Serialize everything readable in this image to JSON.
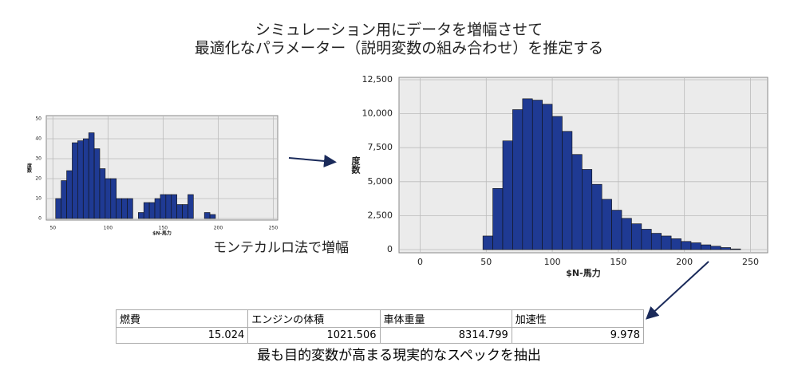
{
  "title": [
    "シミュレーション用にデータを増幅させて",
    "最適化なパラメーター（説明変数の組み合わせ）を推定する"
  ],
  "chart_data": [
    {
      "type": "histogram",
      "xlabel": "$N-馬力",
      "ylabel": "度数",
      "icon_label": "馬力",
      "color": "#1f3a93",
      "grid": true,
      "bins": [
        52.5,
        57.5,
        62.5,
        67.5,
        72.5,
        77.5,
        82.5,
        87.5,
        92.5,
        97.5,
        102.5,
        107.5,
        112.5,
        117.5,
        122.5,
        127.5,
        132.5,
        137.5,
        142.5,
        147.5,
        152.5,
        157.5,
        162.5,
        167.5,
        172.5,
        177.5,
        182.5,
        187.5,
        192.5,
        197.5,
        202.5
      ],
      "counts": [
        10,
        19,
        24,
        38,
        39,
        40,
        43,
        35,
        25,
        20,
        20,
        10,
        10,
        10,
        0,
        3,
        8,
        8,
        10,
        12,
        12,
        12,
        7,
        7,
        12,
        0,
        0,
        3,
        2,
        0
      ],
      "xlim": [
        44,
        254
      ],
      "xticks": [
        50,
        100,
        150,
        200,
        250
      ],
      "ylim": [
        -0.8,
        51.6
      ],
      "yticks": [
        0,
        10,
        20,
        30,
        40,
        50
      ]
    },
    {
      "type": "histogram",
      "xlabel": "$N-馬力",
      "ylabel": "度数",
      "icon_label": "馬力",
      "color": "#1f3a93",
      "grid": true,
      "bins": [
        47.5,
        55,
        62.5,
        70,
        77.5,
        85,
        92.5,
        100,
        107.5,
        115,
        122.5,
        130,
        137.5,
        145,
        152.5,
        160,
        167.5,
        175,
        182.5,
        190,
        197.5,
        205,
        212.5,
        220,
        227.5,
        235,
        242.5
      ],
      "counts": [
        1000,
        4500,
        8000,
        10300,
        11100,
        11000,
        10700,
        9800,
        8700,
        7000,
        5900,
        4800,
        3700,
        2900,
        2300,
        1900,
        1500,
        1200,
        1000,
        800,
        600,
        500,
        350,
        250,
        150,
        50
      ],
      "xlim": [
        -16,
        263
      ],
      "xticks": [
        0,
        50,
        100,
        150,
        200,
        250
      ],
      "ylim": [
        -235,
        12676
      ],
      "yticks": [
        0,
        {
          "value": 2500,
          "label": "2,500"
        },
        {
          "value": 5000,
          "label": "5,000"
        },
        {
          "value": 7500,
          "label": "7,500"
        },
        {
          "value": 10000,
          "label": "10,000"
        },
        {
          "value": 12500,
          "label": "12,500"
        }
      ]
    }
  ],
  "monte_carlo_label": "モンテカルロ法で増幅",
  "table": {
    "headers": [
      "燃費",
      "エンジンの体積",
      "車体重量",
      "加速性"
    ],
    "rows": [
      [
        15.024,
        1021.506,
        8314.799,
        9.978
      ]
    ]
  },
  "footer": "最も目的変数が高まる現実的なスペックを抽出"
}
